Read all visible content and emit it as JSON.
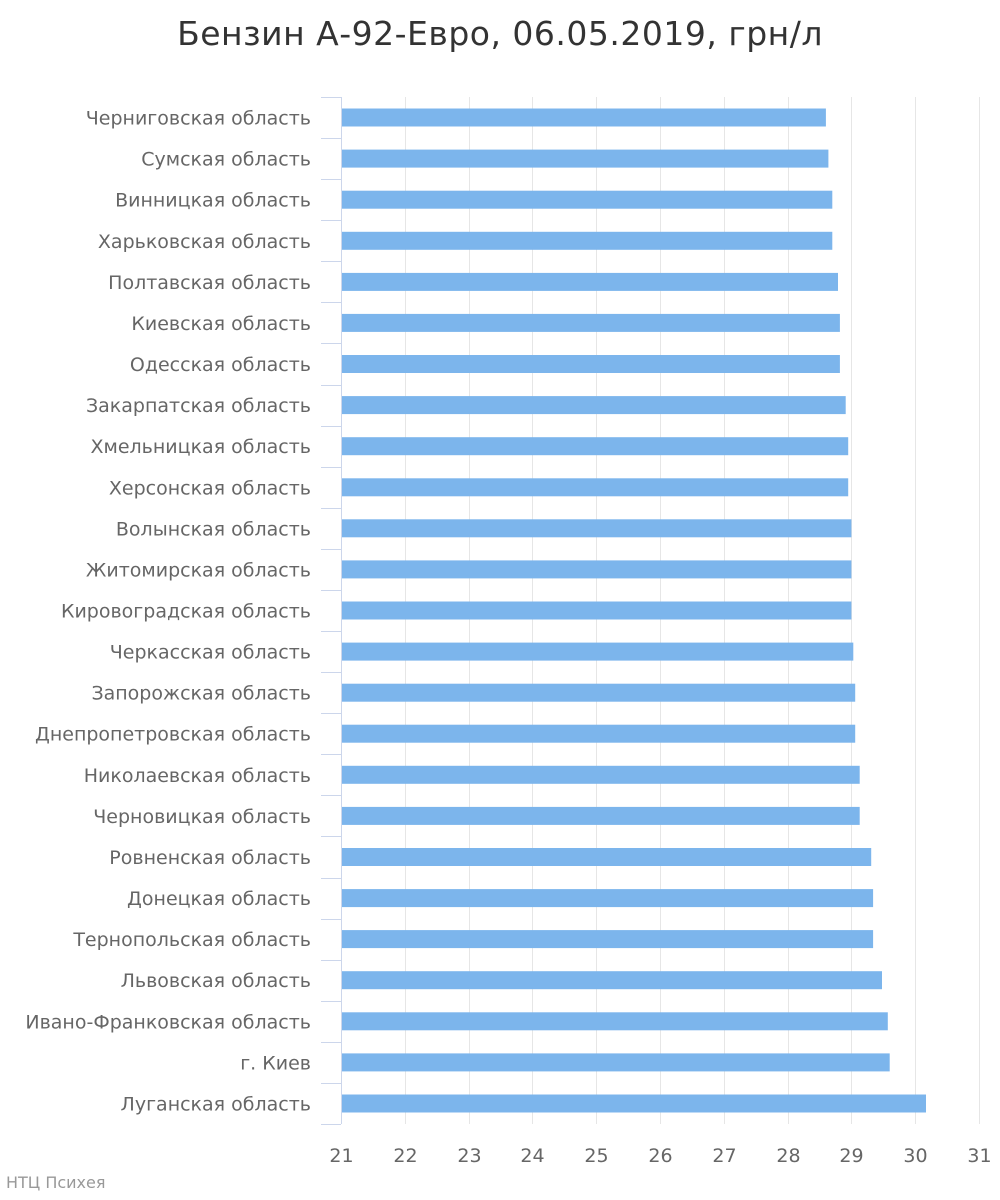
{
  "chart_data": {
    "type": "bar",
    "orientation": "horizontal",
    "title": "Бензин А-92-Евро, 06.05.2019, грн/л",
    "xlabel": "",
    "ylabel": "",
    "xlim": [
      21,
      31
    ],
    "ticks": [
      21,
      22,
      23,
      24,
      25,
      26,
      27,
      28,
      29,
      30,
      31
    ],
    "grid": true,
    "legend": "none",
    "bar_color": "#7cb5ec",
    "categories": [
      "Черниговская область",
      "Сумская область",
      "Винницкая область",
      "Харьковская область",
      "Полтавская область",
      "Киевская область",
      "Одесская область",
      "Закарпатская область",
      "Хмельницкая область",
      "Херсонская область",
      "Волынская область",
      "Житомирская область",
      "Кировоградская область",
      "Черкасская область",
      "Запорожская область",
      "Днепропетровская область",
      "Николаевская область",
      "Черновицкая область",
      "Ровненская область",
      "Донецкая область",
      "Тернопольская область",
      "Львовская область",
      "Ивано-Франковская область",
      "г. Киев",
      "Луганская область"
    ],
    "values": [
      28.6,
      28.64,
      28.7,
      28.7,
      28.79,
      28.82,
      28.82,
      28.91,
      28.95,
      28.95,
      29.0,
      29.0,
      29.0,
      29.03,
      29.06,
      29.06,
      29.13,
      29.13,
      29.31,
      29.34,
      29.34,
      29.48,
      29.57,
      29.6,
      30.17
    ]
  },
  "credit": "НТЦ Психея"
}
